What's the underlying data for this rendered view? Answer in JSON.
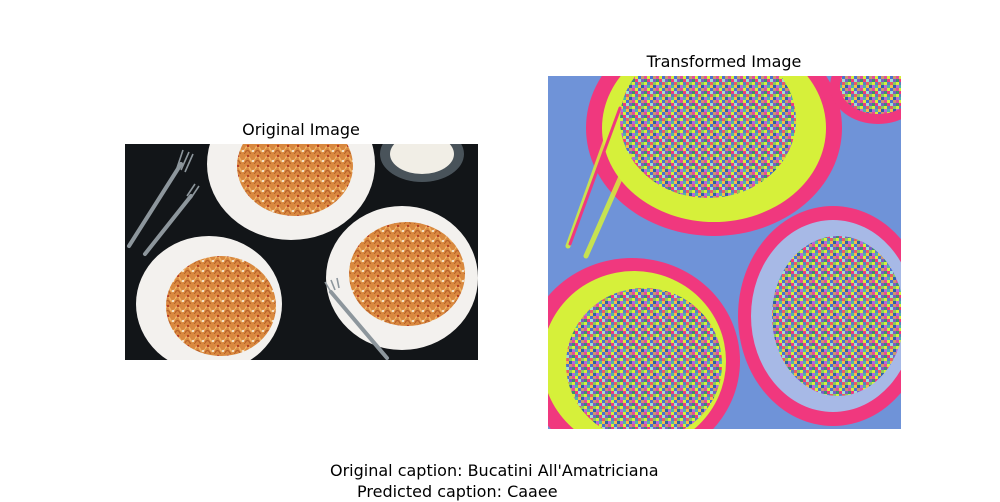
{
  "panels": {
    "original": {
      "title": "Original Image",
      "image_icon": "pasta-plates-photo"
    },
    "transformed": {
      "title": "Transformed Image",
      "image_icon": "noisy-pasta-plates-photo"
    }
  },
  "captions": {
    "original": "Original caption: Bucatini All'Amatriciana",
    "predicted": "Predicted caption: Caaee"
  },
  "colors": {
    "table_dark": "#121518",
    "plate": "#f3f1ee",
    "pasta": "#d9893f",
    "sauce": "#b83a22",
    "trans_blue": "#6f93d8",
    "trans_pink": "#f0387e",
    "trans_yellow": "#d6f03a"
  }
}
